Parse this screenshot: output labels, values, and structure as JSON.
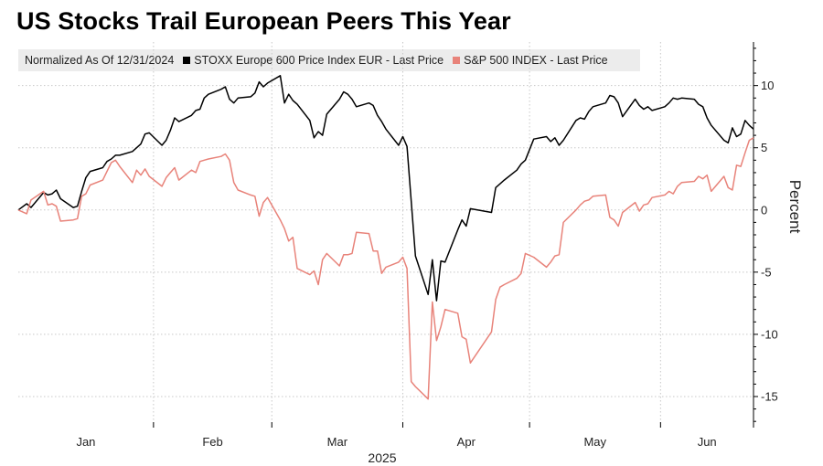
{
  "chart_data": {
    "type": "line",
    "title": "US Stocks Trail European Peers This Year",
    "legend_note": "Normalized As Of 12/31/2024",
    "ylabel": "Percent",
    "xlabel": "2025",
    "ylim": [
      -17.5,
      13.5
    ],
    "yticks": [
      10,
      5,
      0,
      -5,
      -10,
      -15
    ],
    "ytick_labels": [
      "10",
      "5",
      "0",
      "-5",
      "-10",
      "-15"
    ],
    "xlim": [
      "2024-12-31",
      "2025-06-23"
    ],
    "grid": true,
    "legend_position": "top",
    "x_months": [
      {
        "label": "Jan",
        "start": "2024-12-31",
        "end": "2025-02-01"
      },
      {
        "label": "Feb",
        "start": "2025-02-01",
        "end": "2025-03-01"
      },
      {
        "label": "Mar",
        "start": "2025-03-01",
        "end": "2025-04-01"
      },
      {
        "label": "Apr",
        "start": "2025-04-01",
        "end": "2025-05-01"
      },
      {
        "label": "May",
        "start": "2025-05-01",
        "end": "2025-06-01"
      },
      {
        "label": "Jun",
        "start": "2025-06-01",
        "end": "2025-06-23"
      }
    ],
    "series": [
      {
        "name": "STOXX Europe 600 Price Index EUR - Last Price",
        "color": "#000000",
        "points": [
          [
            "2024-12-31",
            0
          ],
          [
            "2025-01-02",
            0.5
          ],
          [
            "2025-01-03",
            0.2
          ],
          [
            "2025-01-06",
            1.4
          ],
          [
            "2025-01-07",
            1.2
          ],
          [
            "2025-01-08",
            1.3
          ],
          [
            "2025-01-09",
            1.6
          ],
          [
            "2025-01-10",
            0.9
          ],
          [
            "2025-01-13",
            0.2
          ],
          [
            "2025-01-14",
            0.3
          ],
          [
            "2025-01-15",
            1.5
          ],
          [
            "2025-01-16",
            2.6
          ],
          [
            "2025-01-17",
            3.1
          ],
          [
            "2025-01-20",
            3.4
          ],
          [
            "2025-01-21",
            3.9
          ],
          [
            "2025-01-22",
            4.1
          ],
          [
            "2025-01-23",
            4.4
          ],
          [
            "2025-01-24",
            4.4
          ],
          [
            "2025-01-27",
            4.7
          ],
          [
            "2025-01-28",
            5.0
          ],
          [
            "2025-01-29",
            5.3
          ],
          [
            "2025-01-30",
            6.1
          ],
          [
            "2025-01-31",
            6.2
          ],
          [
            "2025-02-03",
            5.2
          ],
          [
            "2025-02-04",
            5.6
          ],
          [
            "2025-02-05",
            6.4
          ],
          [
            "2025-02-06",
            7.4
          ],
          [
            "2025-02-07",
            7.1
          ],
          [
            "2025-02-10",
            7.6
          ],
          [
            "2025-02-11",
            8.0
          ],
          [
            "2025-02-12",
            8.1
          ],
          [
            "2025-02-13",
            9.0
          ],
          [
            "2025-02-14",
            9.3
          ],
          [
            "2025-02-17",
            9.7
          ],
          [
            "2025-02-18",
            9.9
          ],
          [
            "2025-02-19",
            8.9
          ],
          [
            "2025-02-20",
            8.6
          ],
          [
            "2025-02-21",
            9.0
          ],
          [
            "2025-02-24",
            9.1
          ],
          [
            "2025-02-25",
            9.4
          ],
          [
            "2025-02-26",
            10.3
          ],
          [
            "2025-02-27",
            9.9
          ],
          [
            "2025-02-28",
            10.2
          ],
          [
            "2025-03-03",
            10.8
          ],
          [
            "2025-03-04",
            8.6
          ],
          [
            "2025-03-05",
            9.3
          ],
          [
            "2025-03-06",
            8.8
          ],
          [
            "2025-03-07",
            8.5
          ],
          [
            "2025-03-10",
            7.2
          ],
          [
            "2025-03-11",
            5.8
          ],
          [
            "2025-03-12",
            6.3
          ],
          [
            "2025-03-13",
            6.0
          ],
          [
            "2025-03-14",
            7.7
          ],
          [
            "2025-03-17",
            8.9
          ],
          [
            "2025-03-18",
            9.5
          ],
          [
            "2025-03-19",
            9.3
          ],
          [
            "2025-03-20",
            8.9
          ],
          [
            "2025-03-21",
            8.3
          ],
          [
            "2025-03-24",
            8.6
          ],
          [
            "2025-03-25",
            8.4
          ],
          [
            "2025-03-26",
            7.6
          ],
          [
            "2025-03-27",
            7.1
          ],
          [
            "2025-03-28",
            6.5
          ],
          [
            "2025-03-31",
            5.2
          ],
          [
            "2025-04-01",
            5.9
          ],
          [
            "2025-04-02",
            5.1
          ],
          [
            "2025-04-03",
            0.7
          ],
          [
            "2025-04-04",
            -3.7
          ],
          [
            "2025-04-07",
            -6.8
          ],
          [
            "2025-04-08",
            -4.0
          ],
          [
            "2025-04-09",
            -7.3
          ],
          [
            "2025-04-10",
            -4.1
          ],
          [
            "2025-04-11",
            -4.2
          ],
          [
            "2025-04-14",
            -1.6
          ],
          [
            "2025-04-15",
            -0.8
          ],
          [
            "2025-04-16",
            -1.3
          ],
          [
            "2025-04-17",
            0.1
          ],
          [
            "2025-04-22",
            -0.2
          ],
          [
            "2025-04-23",
            1.8
          ],
          [
            "2025-04-24",
            2.1
          ],
          [
            "2025-04-25",
            2.4
          ],
          [
            "2025-04-28",
            3.2
          ],
          [
            "2025-04-29",
            3.7
          ],
          [
            "2025-04-30",
            4.0
          ],
          [
            "2025-05-02",
            5.7
          ],
          [
            "2025-05-05",
            5.9
          ],
          [
            "2025-05-06",
            5.5
          ],
          [
            "2025-05-07",
            5.8
          ],
          [
            "2025-05-08",
            5.2
          ],
          [
            "2025-05-09",
            5.6
          ],
          [
            "2025-05-12",
            7.2
          ],
          [
            "2025-05-13",
            7.4
          ],
          [
            "2025-05-14",
            7.3
          ],
          [
            "2025-05-15",
            7.9
          ],
          [
            "2025-05-16",
            8.3
          ],
          [
            "2025-05-19",
            8.6
          ],
          [
            "2025-05-20",
            9.2
          ],
          [
            "2025-05-21",
            9.1
          ],
          [
            "2025-05-22",
            8.6
          ],
          [
            "2025-05-23",
            7.5
          ],
          [
            "2025-05-26",
            8.9
          ],
          [
            "2025-05-27",
            8.4
          ],
          [
            "2025-05-28",
            8.1
          ],
          [
            "2025-05-29",
            8.3
          ],
          [
            "2025-05-30",
            8.0
          ],
          [
            "2025-06-02",
            8.3
          ],
          [
            "2025-06-03",
            8.6
          ],
          [
            "2025-06-04",
            9.0
          ],
          [
            "2025-06-05",
            8.9
          ],
          [
            "2025-06-06",
            9.0
          ],
          [
            "2025-06-09",
            8.9
          ],
          [
            "2025-06-10",
            8.5
          ],
          [
            "2025-06-11",
            8.3
          ],
          [
            "2025-06-12",
            7.4
          ],
          [
            "2025-06-13",
            6.8
          ],
          [
            "2025-06-16",
            5.6
          ],
          [
            "2025-06-17",
            5.4
          ],
          [
            "2025-06-18",
            6.6
          ],
          [
            "2025-06-19",
            5.9
          ],
          [
            "2025-06-20",
            6.1
          ],
          [
            "2025-06-21",
            7.2
          ],
          [
            "2025-06-22",
            6.8
          ],
          [
            "2025-06-23",
            6.5
          ]
        ]
      },
      {
        "name": "S&P 500 INDEX - Last Price",
        "color": "#e8837a",
        "points": [
          [
            "2024-12-31",
            0
          ],
          [
            "2025-01-02",
            -0.3
          ],
          [
            "2025-01-03",
            0.8
          ],
          [
            "2025-01-06",
            1.5
          ],
          [
            "2025-01-07",
            0.4
          ],
          [
            "2025-01-08",
            0.5
          ],
          [
            "2025-01-09",
            0.3
          ],
          [
            "2025-01-10",
            -0.9
          ],
          [
            "2025-01-13",
            -0.8
          ],
          [
            "2025-01-14",
            -0.7
          ],
          [
            "2025-01-15",
            1.1
          ],
          [
            "2025-01-16",
            1.3
          ],
          [
            "2025-01-17",
            2.0
          ],
          [
            "2025-01-20",
            2.4
          ],
          [
            "2025-01-21",
            3.1
          ],
          [
            "2025-01-22",
            3.8
          ],
          [
            "2025-01-23",
            4.0
          ],
          [
            "2025-01-24",
            3.5
          ],
          [
            "2025-01-27",
            2.2
          ],
          [
            "2025-01-28",
            3.2
          ],
          [
            "2025-01-29",
            2.8
          ],
          [
            "2025-01-30",
            3.3
          ],
          [
            "2025-01-31",
            2.7
          ],
          [
            "2025-02-03",
            1.9
          ],
          [
            "2025-02-04",
            2.6
          ],
          [
            "2025-02-05",
            3.0
          ],
          [
            "2025-02-06",
            3.4
          ],
          [
            "2025-02-07",
            2.4
          ],
          [
            "2025-02-10",
            3.2
          ],
          [
            "2025-02-11",
            3.0
          ],
          [
            "2025-02-12",
            3.9
          ],
          [
            "2025-02-13",
            4.0
          ],
          [
            "2025-02-14",
            4.1
          ],
          [
            "2025-02-17",
            4.3
          ],
          [
            "2025-02-18",
            4.5
          ],
          [
            "2025-02-19",
            4.0
          ],
          [
            "2025-02-20",
            2.2
          ],
          [
            "2025-02-21",
            1.6
          ],
          [
            "2025-02-24",
            1.2
          ],
          [
            "2025-02-25",
            1.1
          ],
          [
            "2025-02-26",
            -0.5
          ],
          [
            "2025-02-27",
            0.6
          ],
          [
            "2025-02-28",
            1.0
          ],
          [
            "2025-03-03",
            -0.8
          ],
          [
            "2025-03-04",
            -1.5
          ],
          [
            "2025-03-05",
            -2.5
          ],
          [
            "2025-03-06",
            -2.2
          ],
          [
            "2025-03-07",
            -4.7
          ],
          [
            "2025-03-10",
            -5.2
          ],
          [
            "2025-03-11",
            -4.9
          ],
          [
            "2025-03-12",
            -6.0
          ],
          [
            "2025-03-13",
            -4.0
          ],
          [
            "2025-03-14",
            -3.5
          ],
          [
            "2025-03-17",
            -4.5
          ],
          [
            "2025-03-18",
            -3.6
          ],
          [
            "2025-03-19",
            -3.6
          ],
          [
            "2025-03-20",
            -3.5
          ],
          [
            "2025-03-21",
            -1.8
          ],
          [
            "2025-03-24",
            -1.9
          ],
          [
            "2025-03-25",
            -3.3
          ],
          [
            "2025-03-26",
            -3.3
          ],
          [
            "2025-03-27",
            -5.1
          ],
          [
            "2025-03-28",
            -4.6
          ],
          [
            "2025-03-31",
            -4.2
          ],
          [
            "2025-04-01",
            -3.8
          ],
          [
            "2025-04-02",
            -4.7
          ],
          [
            "2025-04-03",
            -13.8
          ],
          [
            "2025-04-04",
            -14.2
          ],
          [
            "2025-04-07",
            -15.2
          ],
          [
            "2025-04-08",
            -7.4
          ],
          [
            "2025-04-09",
            -10.5
          ],
          [
            "2025-04-10",
            -9.4
          ],
          [
            "2025-04-11",
            -8.0
          ],
          [
            "2025-04-14",
            -8.3
          ],
          [
            "2025-04-15",
            -10.2
          ],
          [
            "2025-04-16",
            -10.4
          ],
          [
            "2025-04-17",
            -12.3
          ],
          [
            "2025-04-22",
            -9.8
          ],
          [
            "2025-04-23",
            -7.2
          ],
          [
            "2025-04-24",
            -6.2
          ],
          [
            "2025-04-25",
            -6.0
          ],
          [
            "2025-04-28",
            -5.5
          ],
          [
            "2025-04-29",
            -5.1
          ],
          [
            "2025-04-30",
            -3.5
          ],
          [
            "2025-05-02",
            -3.8
          ],
          [
            "2025-05-05",
            -4.6
          ],
          [
            "2025-05-06",
            -4.2
          ],
          [
            "2025-05-07",
            -3.7
          ],
          [
            "2025-05-08",
            -3.6
          ],
          [
            "2025-05-09",
            -1.0
          ],
          [
            "2025-05-12",
            0.0
          ],
          [
            "2025-05-13",
            0.4
          ],
          [
            "2025-05-14",
            0.7
          ],
          [
            "2025-05-15",
            0.8
          ],
          [
            "2025-05-16",
            1.1
          ],
          [
            "2025-05-19",
            1.2
          ],
          [
            "2025-05-20",
            -0.6
          ],
          [
            "2025-05-21",
            -0.8
          ],
          [
            "2025-05-22",
            -1.3
          ],
          [
            "2025-05-23",
            -0.2
          ],
          [
            "2025-05-26",
            0.6
          ],
          [
            "2025-05-27",
            -0.1
          ],
          [
            "2025-05-28",
            0.4
          ],
          [
            "2025-05-29",
            0.5
          ],
          [
            "2025-05-30",
            1.0
          ],
          [
            "2025-06-02",
            1.2
          ],
          [
            "2025-06-03",
            1.5
          ],
          [
            "2025-06-04",
            1.3
          ],
          [
            "2025-06-05",
            1.9
          ],
          [
            "2025-06-06",
            2.2
          ],
          [
            "2025-06-09",
            2.3
          ],
          [
            "2025-06-10",
            2.7
          ],
          [
            "2025-06-11",
            2.5
          ],
          [
            "2025-06-12",
            2.8
          ],
          [
            "2025-06-13",
            1.5
          ],
          [
            "2025-06-16",
            2.7
          ],
          [
            "2025-06-17",
            1.8
          ],
          [
            "2025-06-18",
            1.6
          ],
          [
            "2025-06-19",
            3.6
          ],
          [
            "2025-06-20",
            3.5
          ],
          [
            "2025-06-21",
            4.6
          ],
          [
            "2025-06-22",
            5.6
          ],
          [
            "2025-06-23",
            5.8
          ]
        ]
      }
    ]
  }
}
